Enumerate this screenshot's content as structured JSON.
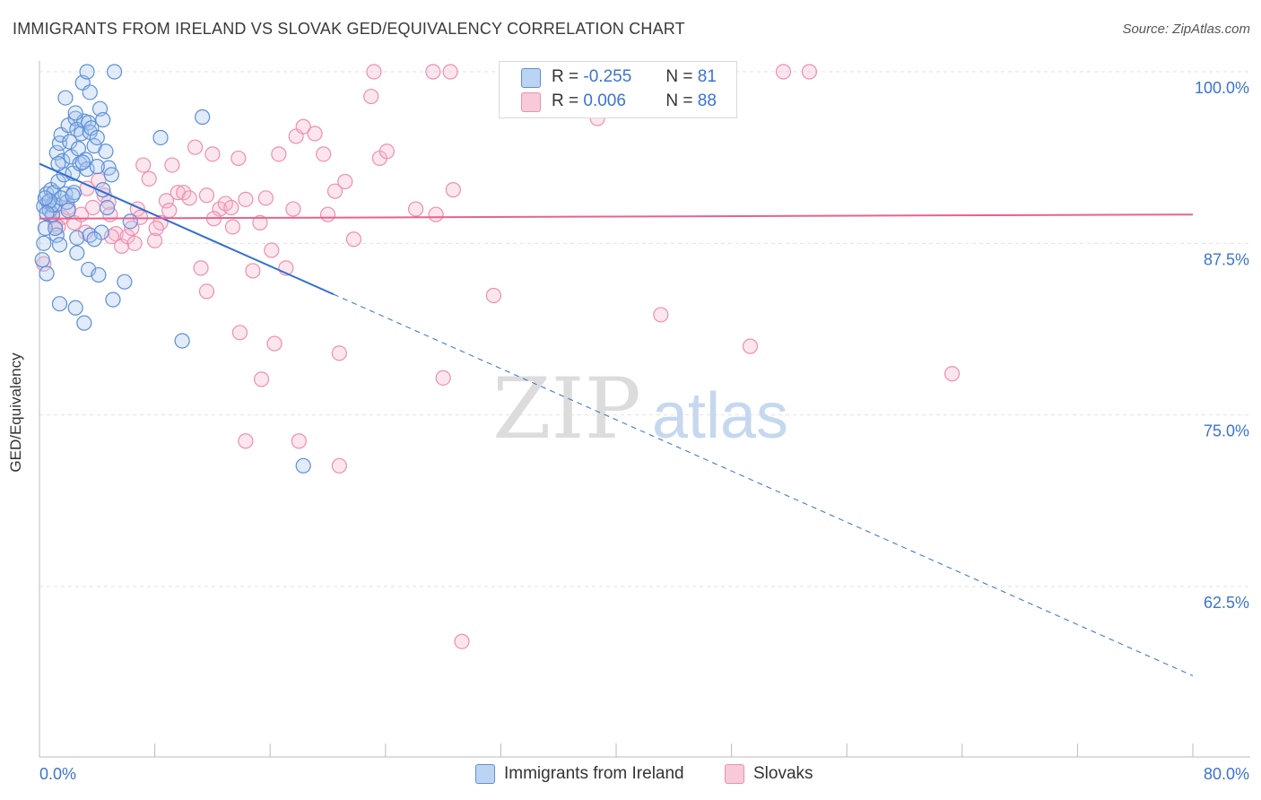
{
  "title": "IMMIGRANTS FROM IRELAND VS SLOVAK GED/EQUIVALENCY CORRELATION CHART",
  "source": "Source: ZipAtlas.com",
  "watermark": {
    "zip": "ZIP",
    "atlas": "atlas"
  },
  "legend": {
    "r_label": "R =",
    "n_label": "N =",
    "series1": {
      "r": "-0.255",
      "n": "81"
    },
    "series2": {
      "r": "0.006",
      "n": "88"
    }
  },
  "bottom_legend": {
    "series1": "Immigrants from Ireland",
    "series2": "Slovaks"
  },
  "chart_data": {
    "type": "scatter",
    "title": "IMMIGRANTS FROM IRELAND VS SLOVAK GED/EQUIVALENCY CORRELATION CHART",
    "ylabel": "GED/Equivalency",
    "xlabel": "",
    "xlim": [
      0,
      80
    ],
    "ylim": [
      50,
      102
    ],
    "x_tick_labels": [
      "0.0%",
      "80.0%"
    ],
    "y_ticks": [
      100,
      87.5,
      75,
      62.5
    ],
    "y_tick_labels": [
      "100.0%",
      "87.5%",
      "75.0%",
      "62.5%"
    ],
    "grid": true,
    "colors": {
      "series1": "#5b8fd9",
      "series2": "#ee8fae",
      "series1_line": "#2f6fd1",
      "series2_line": "#e8628c",
      "axis_text": "#3b73d1"
    },
    "series": [
      {
        "name": "Immigrants from Ireland",
        "r": -0.255,
        "n": 81,
        "trend": {
          "x_start": 0,
          "y_start": 93.3,
          "x_solid_end": 20.4,
          "x_end": 80,
          "y_end": 56.0
        },
        "points": [
          [
            0.3,
            90.2
          ],
          [
            0.5,
            91.1
          ],
          [
            0.6,
            90.5
          ],
          [
            0.7,
            89.9
          ],
          [
            0.8,
            91.4
          ],
          [
            0.9,
            89.6
          ],
          [
            0.4,
            88.6
          ],
          [
            0.3,
            87.5
          ],
          [
            0.2,
            86.3
          ],
          [
            0.5,
            85.3
          ],
          [
            1.0,
            91.2
          ],
          [
            1.1,
            90.3
          ],
          [
            1.2,
            94.1
          ],
          [
            1.3,
            92.0
          ],
          [
            1.4,
            94.8
          ],
          [
            1.5,
            95.4
          ],
          [
            1.6,
            93.5
          ],
          [
            1.7,
            92.5
          ],
          [
            1.8,
            91.1
          ],
          [
            1.9,
            90.5
          ],
          [
            2.0,
            96.1
          ],
          [
            2.1,
            94.9
          ],
          [
            2.2,
            93.8
          ],
          [
            2.3,
            92.6
          ],
          [
            2.4,
            91.2
          ],
          [
            2.5,
            96.6
          ],
          [
            2.6,
            95.8
          ],
          [
            2.7,
            94.4
          ],
          [
            2.8,
            93.3
          ],
          [
            2.9,
            95.5
          ],
          [
            3.0,
            99.2
          ],
          [
            3.1,
            96.4
          ],
          [
            3.2,
            93.6
          ],
          [
            3.3,
            92.9
          ],
          [
            3.4,
            96.3
          ],
          [
            3.5,
            95.6
          ],
          [
            3.6,
            95.9
          ],
          [
            3.8,
            94.6
          ],
          [
            4.0,
            95.2
          ],
          [
            4.2,
            97.3
          ],
          [
            4.4,
            96.5
          ],
          [
            4.6,
            94.2
          ],
          [
            4.8,
            93.0
          ],
          [
            5.0,
            92.5
          ],
          [
            5.2,
            100.0
          ],
          [
            3.3,
            100.0
          ],
          [
            3.5,
            98.5
          ],
          [
            1.8,
            98.1
          ],
          [
            2.5,
            97.0
          ],
          [
            4.0,
            93.1
          ],
          [
            1.2,
            88.1
          ],
          [
            1.4,
            87.4
          ],
          [
            2.6,
            87.9
          ],
          [
            2.6,
            86.8
          ],
          [
            3.4,
            85.6
          ],
          [
            3.5,
            88.1
          ],
          [
            4.3,
            88.3
          ],
          [
            4.1,
            85.2
          ],
          [
            4.7,
            90.1
          ],
          [
            5.1,
            83.4
          ],
          [
            1.4,
            83.1
          ],
          [
            2.5,
            82.8
          ],
          [
            3.1,
            81.7
          ],
          [
            6.3,
            89.1
          ],
          [
            5.9,
            84.7
          ],
          [
            8.4,
            95.2
          ],
          [
            11.3,
            96.7
          ],
          [
            9.9,
            80.4
          ],
          [
            18.3,
            71.3
          ],
          [
            0.9,
            90.3
          ],
          [
            1.5,
            90.8
          ],
          [
            2.0,
            89.9
          ],
          [
            0.7,
            90.6
          ],
          [
            1.1,
            88.6
          ],
          [
            3.8,
            87.8
          ],
          [
            2.3,
            91.0
          ],
          [
            0.5,
            89.7
          ],
          [
            1.3,
            93.3
          ],
          [
            0.4,
            90.8
          ],
          [
            4.4,
            91.4
          ],
          [
            3.0,
            93.4
          ]
        ]
      },
      {
        "name": "Slovaks",
        "r": 0.006,
        "n": 88,
        "trend": {
          "x_start": 0,
          "y_start": 89.3,
          "x_end": 80,
          "y_end": 89.6
        },
        "points": [
          [
            0.3,
            86.0
          ],
          [
            0.6,
            90.5
          ],
          [
            0.9,
            89.5
          ],
          [
            1.1,
            88.9
          ],
          [
            1.6,
            89.4
          ],
          [
            2.0,
            90.1
          ],
          [
            2.4,
            89.0
          ],
          [
            2.9,
            89.6
          ],
          [
            3.3,
            91.5
          ],
          [
            3.7,
            90.1
          ],
          [
            4.1,
            92.1
          ],
          [
            4.5,
            91.0
          ],
          [
            4.9,
            89.6
          ],
          [
            5.3,
            88.2
          ],
          [
            5.7,
            87.3
          ],
          [
            6.1,
            88.0
          ],
          [
            6.4,
            88.6
          ],
          [
            6.8,
            90.0
          ],
          [
            7.2,
            93.2
          ],
          [
            7.6,
            92.2
          ],
          [
            8.0,
            87.7
          ],
          [
            8.4,
            89.0
          ],
          [
            8.8,
            90.6
          ],
          [
            9.2,
            93.2
          ],
          [
            9.6,
            91.2
          ],
          [
            10.0,
            91.2
          ],
          [
            10.4,
            90.8
          ],
          [
            10.8,
            94.5
          ],
          [
            11.2,
            85.7
          ],
          [
            11.6,
            91.0
          ],
          [
            12.0,
            94.0
          ],
          [
            12.5,
            90.0
          ],
          [
            12.9,
            90.4
          ],
          [
            13.3,
            90.1
          ],
          [
            13.8,
            93.7
          ],
          [
            14.3,
            90.7
          ],
          [
            14.8,
            85.5
          ],
          [
            15.3,
            89.0
          ],
          [
            15.7,
            90.8
          ],
          [
            16.1,
            87.0
          ],
          [
            16.6,
            94.0
          ],
          [
            17.1,
            85.7
          ],
          [
            17.6,
            90.0
          ],
          [
            17.8,
            95.3
          ],
          [
            18.3,
            96.0
          ],
          [
            19.1,
            95.5
          ],
          [
            19.7,
            94.0
          ],
          [
            20.0,
            89.6
          ],
          [
            20.5,
            91.3
          ],
          [
            21.2,
            92.0
          ],
          [
            21.8,
            87.8
          ],
          [
            23.0,
            98.2
          ],
          [
            23.6,
            93.7
          ],
          [
            24.1,
            94.2
          ],
          [
            26.1,
            90.0
          ],
          [
            27.5,
            89.6
          ],
          [
            28.7,
            91.4
          ],
          [
            23.2,
            100.0
          ],
          [
            27.3,
            100.0
          ],
          [
            28.5,
            100.0
          ],
          [
            37.8,
            100.0
          ],
          [
            51.6,
            100.0
          ],
          [
            53.4,
            100.0
          ],
          [
            38.7,
            96.6
          ],
          [
            31.5,
            83.7
          ],
          [
            43.1,
            82.3
          ],
          [
            49.3,
            80.0
          ],
          [
            63.3,
            78.0
          ],
          [
            16.3,
            80.2
          ],
          [
            13.9,
            81.0
          ],
          [
            20.8,
            79.5
          ],
          [
            28.0,
            77.7
          ],
          [
            15.4,
            77.6
          ],
          [
            14.3,
            73.1
          ],
          [
            18.0,
            73.1
          ],
          [
            20.8,
            71.3
          ],
          [
            29.3,
            58.5
          ],
          [
            11.6,
            84.0
          ],
          [
            8.1,
            88.6
          ],
          [
            5.0,
            88.0
          ],
          [
            6.6,
            87.5
          ],
          [
            7.0,
            89.4
          ],
          [
            12.1,
            89.3
          ],
          [
            9.0,
            89.9
          ],
          [
            13.4,
            88.7
          ],
          [
            3.2,
            88.3
          ],
          [
            4.8,
            90.5
          ],
          [
            1.3,
            88.7
          ]
        ]
      }
    ]
  }
}
